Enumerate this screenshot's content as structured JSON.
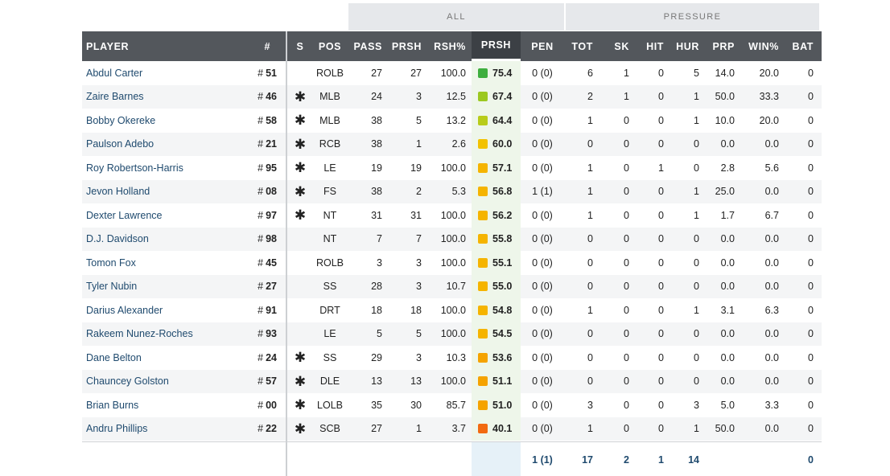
{
  "groups": {
    "all": "ALL",
    "pressure": "PRESSURE"
  },
  "headers": {
    "player": "PLAYER",
    "number": "#",
    "s": "S",
    "pos": "POS",
    "pass": "PASS",
    "prsh": "PRSH",
    "rsh_pct": "RSH%",
    "prsh_grade": "PRSH",
    "pen": "PEN",
    "tot": "TOT",
    "sk": "SK",
    "hit": "HIT",
    "hur": "HUR",
    "prp": "PRP",
    "win_pct": "WIN%",
    "bat": "BAT"
  },
  "number_prefix": "#",
  "star_glyph": "✱",
  "grade_colors": {
    "green": "#3fae3f",
    "lime": "#9bc820",
    "yellow": "#f2c200",
    "orange": "#f5a300",
    "red": "#f26a10"
  },
  "rows": [
    {
      "name": "Abdul Carter",
      "number": "51",
      "starter": false,
      "pos": "ROLB",
      "pass": "27",
      "prsh": "27",
      "rsh_pct": "100.0",
      "grade": "75.4",
      "grade_color": "#3fae3f",
      "pen": "0 (0)",
      "tot": "6",
      "sk": "1",
      "hit": "0",
      "hur": "5",
      "prp": "14.0",
      "win_pct": "20.0",
      "bat": "0"
    },
    {
      "name": "Zaire Barnes",
      "number": "46",
      "starter": true,
      "pos": "MLB",
      "pass": "24",
      "prsh": "3",
      "rsh_pct": "12.5",
      "grade": "67.4",
      "grade_color": "#9bc820",
      "pen": "0 (0)",
      "tot": "2",
      "sk": "1",
      "hit": "0",
      "hur": "1",
      "prp": "50.0",
      "win_pct": "33.3",
      "bat": "0"
    },
    {
      "name": "Bobby Okereke",
      "number": "58",
      "starter": true,
      "pos": "MLB",
      "pass": "38",
      "prsh": "5",
      "rsh_pct": "13.2",
      "grade": "64.4",
      "grade_color": "#b8cc1a",
      "pen": "0 (0)",
      "tot": "1",
      "sk": "0",
      "hit": "0",
      "hur": "1",
      "prp": "10.0",
      "win_pct": "20.0",
      "bat": "0"
    },
    {
      "name": "Paulson Adebo",
      "number": "21",
      "starter": true,
      "pos": "RCB",
      "pass": "38",
      "prsh": "1",
      "rsh_pct": "2.6",
      "grade": "60.0",
      "grade_color": "#f2c200",
      "pen": "0 (0)",
      "tot": "0",
      "sk": "0",
      "hit": "0",
      "hur": "0",
      "prp": "0.0",
      "win_pct": "0.0",
      "bat": "0"
    },
    {
      "name": "Roy Robertson-Harris",
      "number": "95",
      "starter": true,
      "pos": "LE",
      "pass": "19",
      "prsh": "19",
      "rsh_pct": "100.0",
      "grade": "57.1",
      "grade_color": "#f5b400",
      "pen": "0 (0)",
      "tot": "1",
      "sk": "0",
      "hit": "1",
      "hur": "0",
      "prp": "2.8",
      "win_pct": "5.6",
      "bat": "0"
    },
    {
      "name": "Jevon Holland",
      "number": "08",
      "starter": true,
      "pos": "FS",
      "pass": "38",
      "prsh": "2",
      "rsh_pct": "5.3",
      "grade": "56.8",
      "grade_color": "#f5b400",
      "pen": "1 (1)",
      "tot": "1",
      "sk": "0",
      "hit": "0",
      "hur": "1",
      "prp": "25.0",
      "win_pct": "0.0",
      "bat": "0"
    },
    {
      "name": "Dexter Lawrence",
      "number": "97",
      "starter": true,
      "pos": "NT",
      "pass": "31",
      "prsh": "31",
      "rsh_pct": "100.0",
      "grade": "56.2",
      "grade_color": "#f5b400",
      "pen": "0 (0)",
      "tot": "1",
      "sk": "0",
      "hit": "0",
      "hur": "1",
      "prp": "1.7",
      "win_pct": "6.7",
      "bat": "0"
    },
    {
      "name": "D.J. Davidson",
      "number": "98",
      "starter": false,
      "pos": "NT",
      "pass": "7",
      "prsh": "7",
      "rsh_pct": "100.0",
      "grade": "55.8",
      "grade_color": "#f5b400",
      "pen": "0 (0)",
      "tot": "0",
      "sk": "0",
      "hit": "0",
      "hur": "0",
      "prp": "0.0",
      "win_pct": "0.0",
      "bat": "0"
    },
    {
      "name": "Tomon Fox",
      "number": "45",
      "starter": false,
      "pos": "ROLB",
      "pass": "3",
      "prsh": "3",
      "rsh_pct": "100.0",
      "grade": "55.1",
      "grade_color": "#f5b400",
      "pen": "0 (0)",
      "tot": "0",
      "sk": "0",
      "hit": "0",
      "hur": "0",
      "prp": "0.0",
      "win_pct": "0.0",
      "bat": "0"
    },
    {
      "name": "Tyler Nubin",
      "number": "27",
      "starter": false,
      "pos": "SS",
      "pass": "28",
      "prsh": "3",
      "rsh_pct": "10.7",
      "grade": "55.0",
      "grade_color": "#f5b400",
      "pen": "0 (0)",
      "tot": "0",
      "sk": "0",
      "hit": "0",
      "hur": "0",
      "prp": "0.0",
      "win_pct": "0.0",
      "bat": "0"
    },
    {
      "name": "Darius Alexander",
      "number": "91",
      "starter": false,
      "pos": "DRT",
      "pass": "18",
      "prsh": "18",
      "rsh_pct": "100.0",
      "grade": "54.8",
      "grade_color": "#f5b400",
      "pen": "0 (0)",
      "tot": "1",
      "sk": "0",
      "hit": "0",
      "hur": "1",
      "prp": "3.1",
      "win_pct": "6.3",
      "bat": "0"
    },
    {
      "name": "Rakeem Nunez-Roches",
      "number": "93",
      "starter": false,
      "pos": "LE",
      "pass": "5",
      "prsh": "5",
      "rsh_pct": "100.0",
      "grade": "54.5",
      "grade_color": "#f5b400",
      "pen": "0 (0)",
      "tot": "0",
      "sk": "0",
      "hit": "0",
      "hur": "0",
      "prp": "0.0",
      "win_pct": "0.0",
      "bat": "0"
    },
    {
      "name": "Dane Belton",
      "number": "24",
      "starter": true,
      "pos": "SS",
      "pass": "29",
      "prsh": "3",
      "rsh_pct": "10.3",
      "grade": "53.6",
      "grade_color": "#f5a300",
      "pen": "0 (0)",
      "tot": "0",
      "sk": "0",
      "hit": "0",
      "hur": "0",
      "prp": "0.0",
      "win_pct": "0.0",
      "bat": "0"
    },
    {
      "name": "Chauncey Golston",
      "number": "57",
      "starter": true,
      "pos": "DLE",
      "pass": "13",
      "prsh": "13",
      "rsh_pct": "100.0",
      "grade": "51.1",
      "grade_color": "#f5a300",
      "pen": "0 (0)",
      "tot": "0",
      "sk": "0",
      "hit": "0",
      "hur": "0",
      "prp": "0.0",
      "win_pct": "0.0",
      "bat": "0"
    },
    {
      "name": "Brian Burns",
      "number": "00",
      "starter": true,
      "pos": "LOLB",
      "pass": "35",
      "prsh": "30",
      "rsh_pct": "85.7",
      "grade": "51.0",
      "grade_color": "#f5a300",
      "pen": "0 (0)",
      "tot": "3",
      "sk": "0",
      "hit": "0",
      "hur": "3",
      "prp": "5.0",
      "win_pct": "3.3",
      "bat": "0"
    },
    {
      "name": "Andru Phillips",
      "number": "22",
      "starter": true,
      "pos": "SCB",
      "pass": "27",
      "prsh": "1",
      "rsh_pct": "3.7",
      "grade": "40.1",
      "grade_color": "#f26a10",
      "pen": "0 (0)",
      "tot": "1",
      "sk": "0",
      "hit": "0",
      "hur": "1",
      "prp": "50.0",
      "win_pct": "0.0",
      "bat": "0"
    }
  ],
  "totals": {
    "pen": "1 (1)",
    "tot": "17",
    "sk": "2",
    "hit": "1",
    "hur": "14",
    "bat": "0"
  }
}
